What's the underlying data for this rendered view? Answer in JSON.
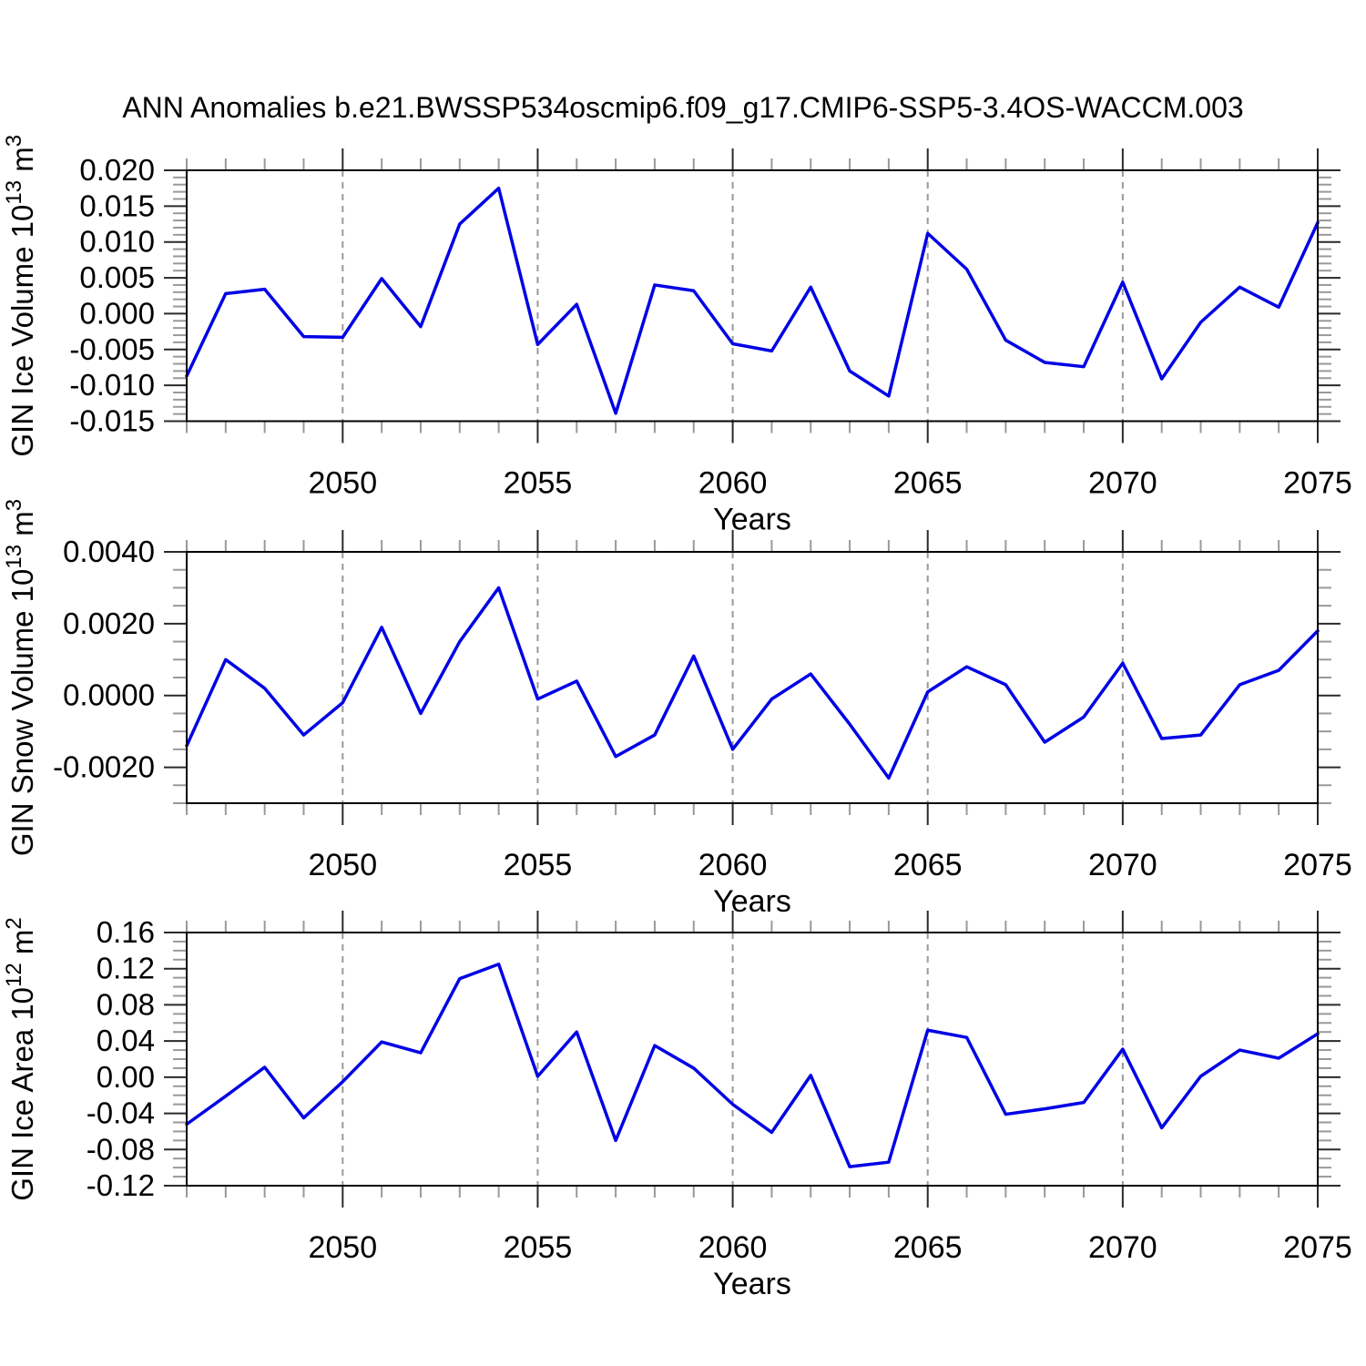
{
  "page": {
    "background": "#ffffff"
  },
  "style": {
    "line_color": "#0000e6",
    "axis_color": "#000000",
    "grid_color": "#999999",
    "major_tick_color": "#2a2a2a",
    "minor_tick_color": "#999999",
    "text_color": "#000000"
  },
  "chart_data": {
    "type": "line",
    "suptitle": "ANN Anomalies b.e21.BWSSP534oscmip6.f09_g17.CMIP6-SSP5-3.4OS-WACCM.003",
    "xlabel": "Years",
    "x_years": [
      2046,
      2047,
      2048,
      2049,
      2050,
      2051,
      2052,
      2053,
      2054,
      2055,
      2056,
      2057,
      2058,
      2059,
      2060,
      2061,
      2062,
      2063,
      2064,
      2065,
      2066,
      2067,
      2068,
      2069,
      2070,
      2071,
      2072,
      2073,
      2074,
      2075
    ],
    "xlim": [
      2046,
      2075
    ],
    "xticks_labeled": [
      2050,
      2055,
      2060,
      2065,
      2070,
      2075
    ],
    "xtick_minor_step": 1,
    "grid_x": [
      2050,
      2055,
      2060,
      2065,
      2070
    ],
    "grid_style": "dashed",
    "legend": "none",
    "charts": [
      {
        "name": "gin-ice-volume",
        "ylabel": "GIN Ice Volume 10^13 m^3",
        "ylabel_rich": [
          {
            "t": "GIN Ice Volume 10"
          },
          {
            "sup": "13"
          },
          {
            "t": " m"
          },
          {
            "sup": "3"
          }
        ],
        "ylim": [
          -0.015,
          0.02
        ],
        "ymajor": 0.005,
        "yminor": 0.001,
        "ydecimals": 3,
        "ytick_labels": [
          "0.020",
          "0.015",
          "0.010",
          "0.005",
          "0.000",
          "-0.005",
          "-0.010",
          "-0.015"
        ],
        "values": [
          -0.0087,
          0.0028,
          0.0034,
          -0.0032,
          -0.0033,
          0.0049,
          -0.0018,
          0.0125,
          0.0175,
          -0.0043,
          0.0013,
          -0.0139,
          0.004,
          0.0032,
          -0.0042,
          -0.0052,
          0.0037,
          -0.008,
          -0.0115,
          0.0112,
          0.0062,
          -0.0037,
          -0.0068,
          -0.0074,
          0.0044,
          -0.0091,
          -0.0012,
          0.0037,
          0.0009,
          0.0127
        ]
      },
      {
        "name": "gin-snow-volume",
        "ylabel": "GIN Snow Volume 10^13 m^3",
        "ylabel_rich": [
          {
            "t": "GIN Snow Volume 10"
          },
          {
            "sup": "13"
          },
          {
            "t": " m"
          },
          {
            "sup": "3"
          }
        ],
        "ylim": [
          -0.003,
          0.004
        ],
        "ymajor": 0.002,
        "yminor": 0.0005,
        "ydecimals": 4,
        "ytick_labels": [
          "0.0040",
          "0.0020",
          "0.0000",
          "-0.0020"
        ],
        "values": [
          -0.0014,
          0.001,
          0.0002,
          -0.0011,
          -0.0002,
          0.0019,
          -0.0005,
          0.0015,
          0.003,
          -0.0001,
          0.0004,
          -0.0017,
          -0.0011,
          0.0011,
          -0.0015,
          -0.0001,
          0.0006,
          -0.0008,
          -0.0023,
          0.0001,
          0.0008,
          0.0003,
          -0.0013,
          -0.0006,
          0.0009,
          -0.0012,
          -0.0011,
          0.0003,
          0.0007,
          0.0018
        ]
      },
      {
        "name": "gin-ice-area",
        "ylabel": "GIN Ice Area 10^12 m^2",
        "ylabel_rich": [
          {
            "t": "GIN Ice Area 10"
          },
          {
            "sup": "12"
          },
          {
            "t": " m"
          },
          {
            "sup": "2"
          }
        ],
        "ylim": [
          -0.12,
          0.16
        ],
        "ymajor": 0.04,
        "yminor": 0.01,
        "ydecimals": 2,
        "ytick_labels": [
          "0.16",
          "0.12",
          "0.08",
          "0.04",
          "0.00",
          "-0.04",
          "-0.08",
          "-0.12"
        ],
        "values": [
          -0.052,
          -0.021,
          0.011,
          -0.045,
          -0.005,
          0.039,
          0.027,
          0.109,
          0.125,
          0.001,
          0.05,
          -0.07,
          0.035,
          0.01,
          -0.03,
          -0.061,
          0.002,
          -0.099,
          -0.094,
          0.052,
          0.044,
          -0.041,
          -0.035,
          -0.028,
          0.031,
          -0.056,
          0.001,
          0.03,
          0.021,
          0.048
        ]
      }
    ]
  }
}
